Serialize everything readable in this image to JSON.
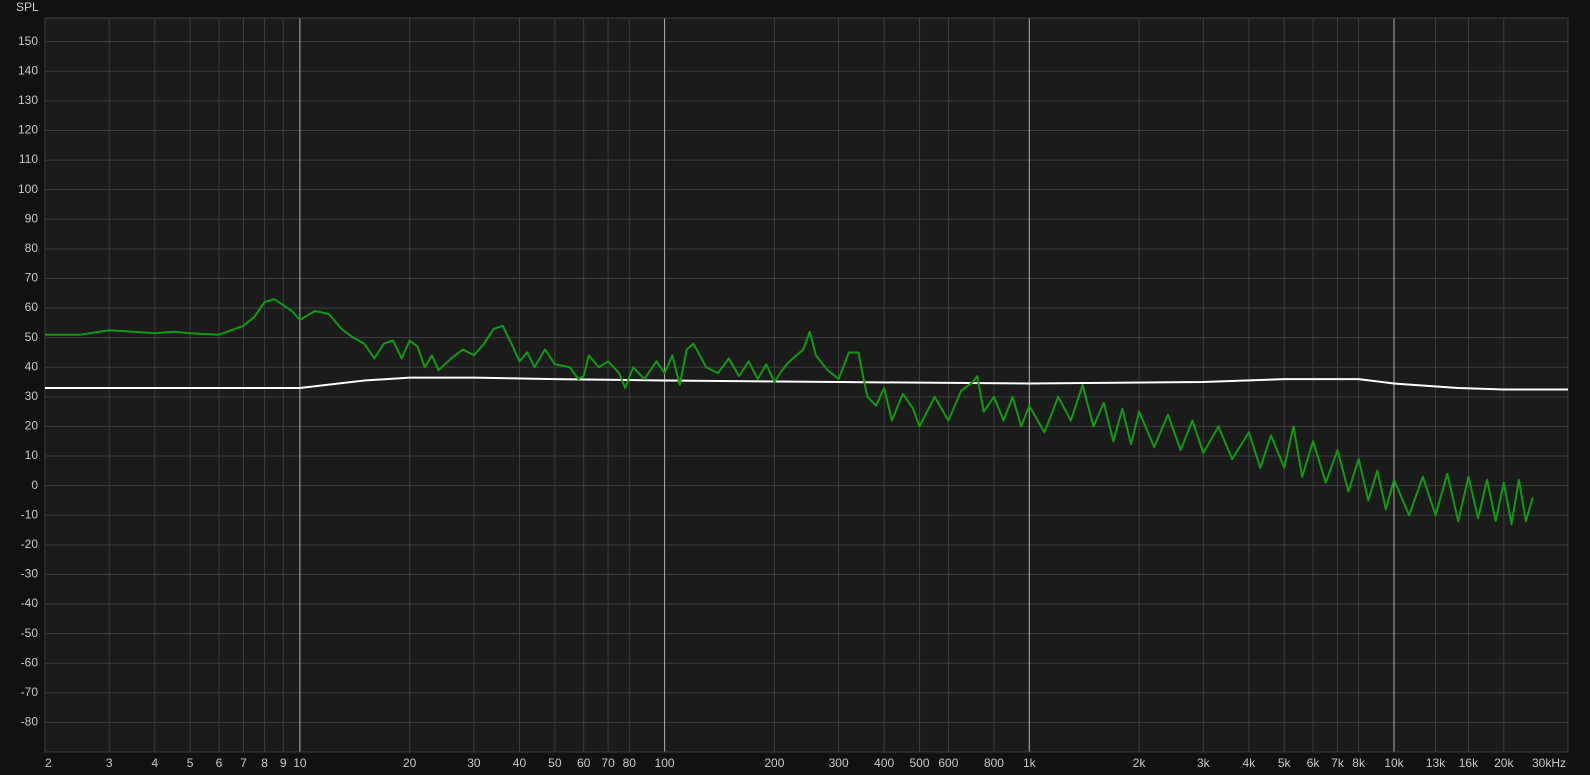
{
  "chart_data": {
    "type": "line",
    "ylabel": "SPL",
    "xscale": "log",
    "grid": true,
    "xlim": [
      2,
      30000
    ],
    "ylim": [
      -90,
      158
    ],
    "xticks": [
      2,
      3,
      4,
      5,
      6,
      7,
      8,
      9,
      10,
      20,
      30,
      40,
      50,
      60,
      70,
      80,
      100,
      200,
      300,
      400,
      500,
      600,
      800,
      {
        "value": 1000,
        "label": "1k"
      },
      {
        "value": 2000,
        "label": "2k"
      },
      {
        "value": 3000,
        "label": "3k"
      },
      {
        "value": 4000,
        "label": "4k"
      },
      {
        "value": 5000,
        "label": "5k"
      },
      {
        "value": 6000,
        "label": "6k"
      },
      {
        "value": 7000,
        "label": "7k"
      },
      {
        "value": 8000,
        "label": "8k"
      },
      {
        "value": 10000,
        "label": "10k"
      },
      {
        "value": 13000,
        "label": "13k"
      },
      {
        "value": 16000,
        "label": "16k"
      },
      {
        "value": 20000,
        "label": "20k"
      },
      {
        "value": 30000,
        "label": "30kHz"
      }
    ],
    "yticks": [
      -80,
      -70,
      -60,
      -50,
      -40,
      -30,
      -20,
      -10,
      0,
      10,
      20,
      30,
      40,
      50,
      60,
      70,
      80,
      90,
      100,
      110,
      120,
      130,
      140,
      150
    ],
    "series": [
      {
        "color": "#ffffff",
        "x": [
          2,
          10,
          15,
          20,
          30,
          50,
          100,
          300,
          1000,
          3000,
          5000,
          8000,
          10000,
          15000,
          20000,
          30000
        ],
        "values": [
          33,
          33,
          35.5,
          36.5,
          36.5,
          36,
          35.5,
          35,
          34.5,
          35,
          36,
          36,
          34.5,
          33,
          32.5,
          32.5
        ]
      },
      {
        "color": "#109a10",
        "x": [
          2,
          2.5,
          3,
          3.5,
          4,
          4.5,
          5,
          6,
          7,
          7.5,
          8,
          8.5,
          9,
          9.5,
          10,
          11,
          12,
          13,
          14,
          15,
          16,
          17,
          18,
          19,
          20,
          21,
          22,
          23,
          24,
          26,
          28,
          30,
          32,
          34,
          36,
          38,
          40,
          42,
          44,
          47,
          50,
          55,
          58,
          60,
          62,
          66,
          70,
          75,
          78,
          82,
          88,
          95,
          100,
          105,
          110,
          115,
          120,
          130,
          140,
          150,
          160,
          170,
          180,
          190,
          200,
          210,
          220,
          240,
          250,
          260,
          280,
          300,
          320,
          340,
          350,
          360,
          380,
          400,
          420,
          450,
          480,
          500,
          550,
          600,
          650,
          700,
          720,
          750,
          800,
          850,
          900,
          950,
          1000,
          1100,
          1200,
          1300,
          1400,
          1500,
          1600,
          1700,
          1800,
          1900,
          2000,
          2200,
          2400,
          2600,
          2800,
          3000,
          3300,
          3600,
          4000,
          4300,
          4600,
          5000,
          5300,
          5600,
          6000,
          6500,
          7000,
          7500,
          8000,
          8500,
          9000,
          9500,
          10000,
          11000,
          12000,
          13000,
          14000,
          15000,
          16000,
          17000,
          18000,
          19000,
          20000,
          21000,
          22000,
          23000,
          24000
        ],
        "values": [
          51,
          51,
          52.5,
          52,
          51.5,
          52,
          51.5,
          51,
          54,
          57,
          62,
          63,
          61,
          59,
          56,
          59,
          58,
          53,
          50,
          48,
          43,
          48,
          49,
          43,
          49,
          47,
          40,
          44,
          39,
          43,
          46,
          44,
          48,
          53,
          54,
          48,
          42,
          45,
          40,
          46,
          41,
          40,
          36,
          37,
          44,
          40,
          42,
          38,
          33,
          40,
          36,
          42,
          38,
          44,
          34,
          46,
          48,
          40,
          38,
          43,
          37,
          42,
          36,
          41,
          35,
          39,
          42,
          46,
          52,
          44,
          39,
          36,
          45,
          45,
          37,
          30,
          27,
          33,
          22,
          31,
          26,
          20,
          30,
          22,
          32,
          35,
          37,
          25,
          30,
          22,
          30,
          20,
          27,
          18,
          30,
          22,
          34,
          20,
          28,
          15,
          26,
          14,
          25,
          13,
          24,
          12,
          22,
          11,
          20,
          9,
          18,
          6,
          17,
          6,
          20,
          3,
          15,
          1,
          12,
          -2,
          9,
          -5,
          5,
          -8,
          2,
          -10,
          3,
          -10,
          4,
          -12,
          3,
          -11,
          2,
          -12,
          1,
          -13,
          2,
          -12,
          -4
        ]
      }
    ]
  }
}
